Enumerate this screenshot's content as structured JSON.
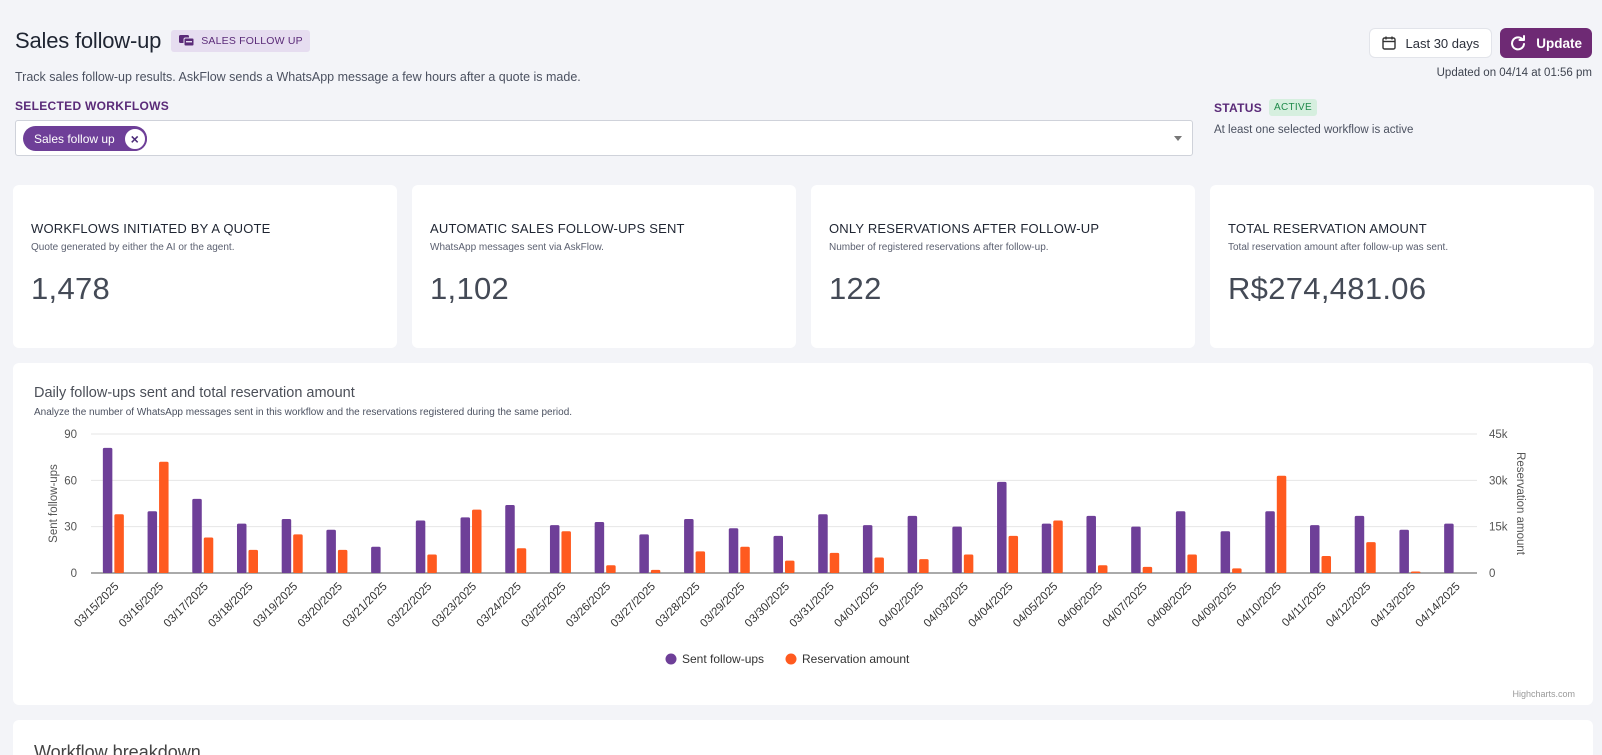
{
  "header": {
    "title": "Sales follow-up",
    "tag": "SALES FOLLOW UP",
    "subtitle": "Track sales follow-up results. AskFlow sends a WhatsApp message a few hours after a quote is made.",
    "range_label": "Last 30 days",
    "update_label": "Update",
    "updated_text": "Updated on 04/14 at 01:56 pm"
  },
  "workflows": {
    "label": "SELECTED WORKFLOWS",
    "selected": [
      "Sales follow up"
    ]
  },
  "status": {
    "label": "STATUS",
    "badge": "ACTIVE",
    "text": "At least one selected workflow is active"
  },
  "cards": [
    {
      "title": "WORKFLOWS INITIATED BY A QUOTE",
      "subtitle": "Quote generated by either the AI or the agent.",
      "value": "1,478"
    },
    {
      "title": "AUTOMATIC SALES FOLLOW-UPS SENT",
      "subtitle": "WhatsApp messages sent via AskFlow.",
      "value": "1,102"
    },
    {
      "title": "ONLY RESERVATIONS AFTER FOLLOW-UP",
      "subtitle": "Number of registered reservations after follow-up.",
      "value": "122"
    },
    {
      "title": "TOTAL RESERVATION AMOUNT",
      "subtitle": "Total reservation amount after follow-up was sent.",
      "value": "R$274,481.06"
    }
  ],
  "chart": {
    "title": "Daily follow-ups sent and total reservation amount",
    "subtitle": "Analyze the number of WhatsApp messages sent in this workflow and the reservations registered during the same period.",
    "credits": "Highcharts.com"
  },
  "chart_data": {
    "type": "bar",
    "categories": [
      "03/15/2025",
      "03/16/2025",
      "03/17/2025",
      "03/18/2025",
      "03/19/2025",
      "03/20/2025",
      "03/21/2025",
      "03/22/2025",
      "03/23/2025",
      "03/24/2025",
      "03/25/2025",
      "03/26/2025",
      "03/27/2025",
      "03/28/2025",
      "03/29/2025",
      "03/30/2025",
      "03/31/2025",
      "04/01/2025",
      "04/02/2025",
      "04/03/2025",
      "04/04/2025",
      "04/05/2025",
      "04/06/2025",
      "04/07/2025",
      "04/08/2025",
      "04/09/2025",
      "04/10/2025",
      "04/11/2025",
      "04/12/2025",
      "04/13/2025",
      "04/14/2025"
    ],
    "series": [
      {
        "name": "Sent follow-ups",
        "axis": "left",
        "color": "#6e3f98",
        "values": [
          81,
          40,
          48,
          32,
          35,
          28,
          17,
          34,
          36,
          44,
          31,
          33,
          25,
          35,
          29,
          24,
          38,
          31,
          37,
          30,
          59,
          32,
          37,
          30,
          40,
          27,
          40,
          31,
          37,
          28,
          32
        ]
      },
      {
        "name": "Reservation amount",
        "axis": "right",
        "color": "#ff5a1f",
        "values": [
          19000,
          36000,
          11500,
          7500,
          12500,
          7500,
          0,
          6000,
          20500,
          8000,
          13500,
          2500,
          1000,
          7000,
          8500,
          4000,
          6500,
          5000,
          4500,
          6000,
          12000,
          17000,
          2500,
          2000,
          6000,
          1500,
          31500,
          5500,
          10000,
          500,
          0
        ]
      }
    ],
    "ylabel": "Sent follow-ups",
    "y2label": "Reservation amount",
    "ylim": [
      0,
      90
    ],
    "y2lim": [
      0,
      45000
    ],
    "yticks": [
      "0",
      "30",
      "60",
      "90"
    ],
    "y2ticks": [
      "0",
      "15k",
      "30k",
      "45k"
    ],
    "legend_position": "bottom-center"
  },
  "bottom": {
    "title": "Workflow breakdown"
  }
}
